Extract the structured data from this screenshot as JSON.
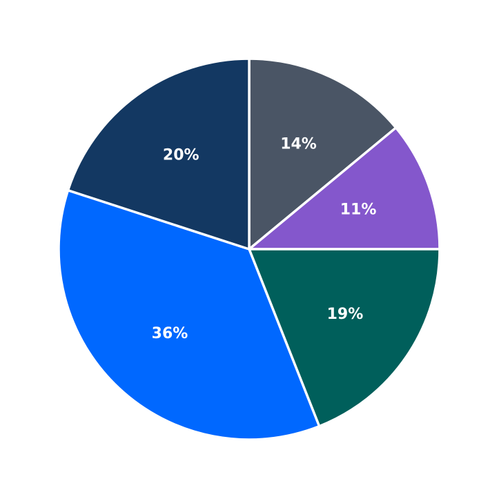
{
  "chart_data": {
    "type": "pie",
    "title": "",
    "slices": [
      {
        "label": "14%",
        "value": 14,
        "color": "#4a5565"
      },
      {
        "label": "11%",
        "value": 11,
        "color": "#8457cc"
      },
      {
        "label": "19%",
        "value": 19,
        "color": "#005f5b"
      },
      {
        "label": "36%",
        "value": 36,
        "color": "#0068ff"
      },
      {
        "label": "20%",
        "value": 20,
        "color": "#133862"
      }
    ],
    "start": "top",
    "direction": "clockwise",
    "legend": "none"
  }
}
